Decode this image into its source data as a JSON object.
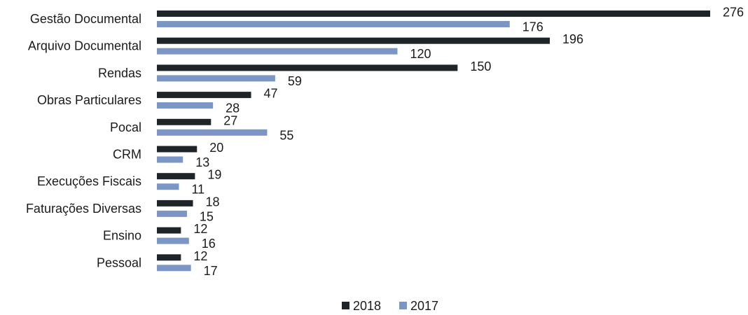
{
  "chart_data": {
    "type": "bar",
    "orientation": "horizontal",
    "categories": [
      "Gestão Documental",
      "Arquivo Documental",
      "Rendas",
      "Obras Particulares",
      "Pocal",
      "CRM",
      "Execuções Fiscais",
      "Faturações Diversas",
      "Ensino",
      "Pessoal"
    ],
    "series": [
      {
        "name": "2018",
        "color": "#1f2428",
        "values": [
          276,
          196,
          150,
          47,
          27,
          20,
          19,
          18,
          12,
          12
        ]
      },
      {
        "name": "2017",
        "color": "#7b96c4",
        "values": [
          176,
          120,
          59,
          28,
          55,
          13,
          11,
          15,
          16,
          17
        ]
      }
    ],
    "xlim": [
      0,
      276
    ],
    "grid": false,
    "legend_position": "bottom"
  }
}
